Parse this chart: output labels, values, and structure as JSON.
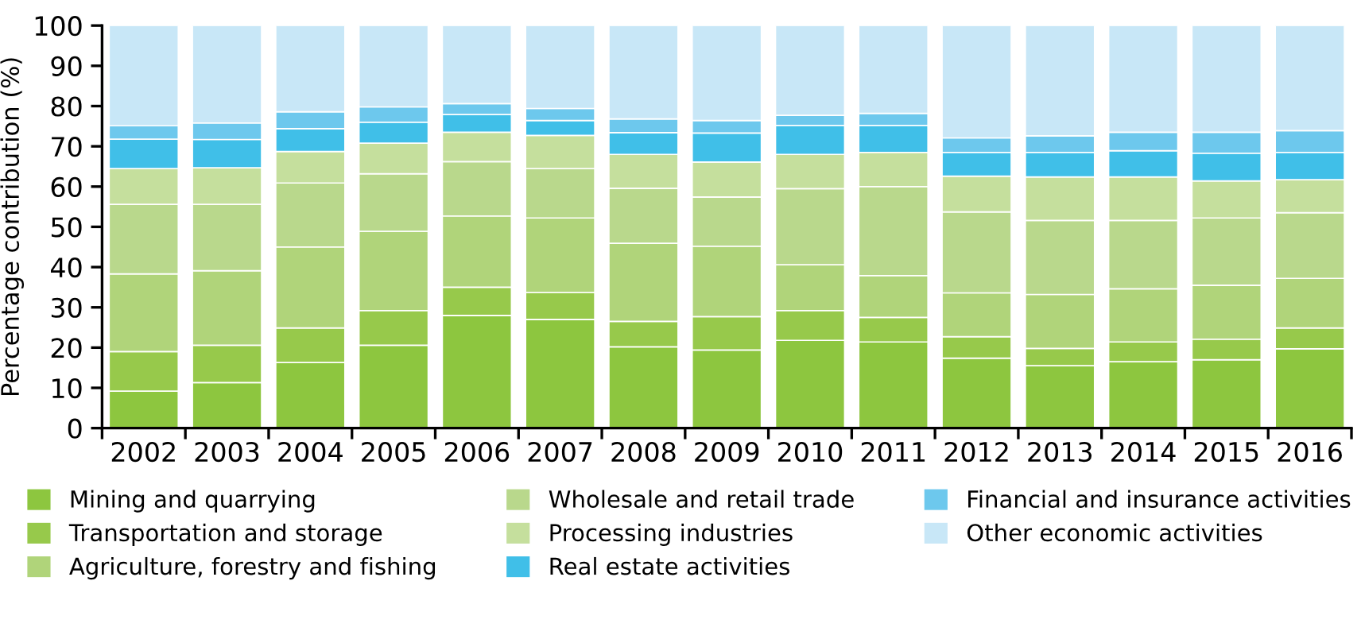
{
  "chart_data": {
    "type": "bar",
    "stacked": true,
    "ylabel": "Percentage contribution (%)",
    "categories": [
      "2002",
      "2003",
      "2004",
      "2005",
      "2006",
      "2007",
      "2008",
      "2009",
      "2010",
      "2011",
      "2012",
      "2013",
      "2014",
      "2015",
      "2016"
    ],
    "ylim": [
      0,
      100
    ],
    "yticks": [
      0,
      10,
      20,
      30,
      40,
      50,
      60,
      70,
      80,
      90,
      100
    ],
    "grid": false,
    "legend": "bottom",
    "series": [
      {
        "name": "Mining and quarrying",
        "color": "#8dc63f",
        "values": [
          9.2,
          11.3,
          16.3,
          20.6,
          28.0,
          27.0,
          20.2,
          19.4,
          21.8,
          21.4,
          17.4,
          15.5,
          16.5,
          17.0,
          19.7
        ]
      },
      {
        "name": "Transportation and storage",
        "color": "#97c94b",
        "values": [
          9.8,
          9.3,
          8.6,
          8.6,
          7.0,
          6.7,
          6.3,
          8.3,
          7.4,
          6.1,
          5.3,
          4.3,
          4.9,
          5.1,
          5.2
        ]
      },
      {
        "name": "Agriculture, forestry and fishing",
        "color": "#b0d47a",
        "values": [
          19.3,
          18.5,
          20.1,
          19.7,
          17.7,
          18.5,
          19.4,
          17.5,
          11.4,
          10.4,
          10.9,
          13.4,
          13.2,
          13.4,
          12.3
        ]
      },
      {
        "name": "Wholesale and retail trade",
        "color": "#b9d88c",
        "values": [
          17.3,
          16.5,
          15.9,
          14.3,
          13.5,
          12.3,
          13.7,
          12.2,
          18.9,
          22.1,
          20.1,
          18.4,
          17.0,
          16.7,
          16.3
        ]
      },
      {
        "name": "Processing industries",
        "color": "#c5df9d",
        "values": [
          8.9,
          9.1,
          7.8,
          7.6,
          7.3,
          8.2,
          8.4,
          8.7,
          8.5,
          8.5,
          8.9,
          10.8,
          10.8,
          9.2,
          8.2
        ]
      },
      {
        "name": "Real estate activities",
        "color": "#40bfe8",
        "values": [
          7.3,
          7.0,
          5.7,
          5.2,
          4.4,
          3.7,
          5.4,
          7.2,
          7.2,
          6.7,
          5.9,
          6.1,
          6.5,
          6.9,
          6.8
        ]
      },
      {
        "name": "Financial and insurance activities",
        "color": "#6dc8ed",
        "values": [
          3.3,
          4.1,
          4.2,
          3.8,
          2.7,
          3.0,
          3.4,
          3.1,
          2.5,
          3.0,
          3.6,
          4.1,
          4.6,
          5.2,
          5.4
        ]
      },
      {
        "name": "Other economic activities",
        "color": "#c8e7f7",
        "values": [
          24.9,
          24.2,
          21.4,
          20.2,
          19.4,
          20.6,
          23.2,
          23.6,
          22.3,
          21.8,
          27.9,
          27.4,
          26.5,
          26.5,
          26.1
        ]
      }
    ]
  }
}
